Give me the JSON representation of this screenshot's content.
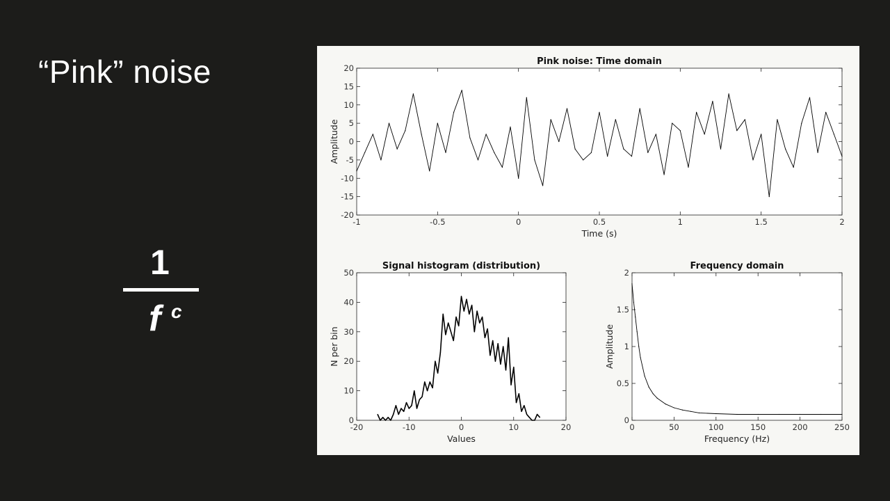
{
  "slide": {
    "title": "“Pink” noise",
    "formula": {
      "numerator": "1",
      "denominator": "f",
      "exponent": "c"
    }
  },
  "colors": {
    "slide_bg": "#1c1c1a",
    "figure_bg": "#f7f7f4",
    "line": "#000000"
  },
  "chart_data": [
    {
      "type": "line",
      "title": "Pink noise: Time domain",
      "xlabel": "Time (s)",
      "ylabel": "Amplitude",
      "xlim": [
        -1,
        2
      ],
      "ylim": [
        -20,
        20
      ],
      "xticks": [
        -1,
        -0.5,
        0,
        0.5,
        1,
        1.5,
        2
      ],
      "yticks": [
        -20,
        -15,
        -10,
        -5,
        0,
        5,
        10,
        15,
        20
      ],
      "grid": false,
      "series": [
        {
          "values_note": "",
          "x": [
            -1.0,
            -0.95,
            -0.9,
            -0.85,
            -0.8,
            -0.75,
            -0.7,
            -0.65,
            -0.6,
            -0.55,
            -0.5,
            -0.45,
            -0.4,
            -0.35,
            -0.3,
            -0.25,
            -0.2,
            -0.15,
            -0.1,
            -0.05,
            0.0,
            0.05,
            0.1,
            0.15,
            0.2,
            0.25,
            0.3,
            0.35,
            0.4,
            0.45,
            0.5,
            0.55,
            0.6,
            0.65,
            0.7,
            0.75,
            0.8,
            0.85,
            0.9,
            0.95,
            1.0,
            1.05,
            1.1,
            1.15,
            1.2,
            1.25,
            1.3,
            1.35,
            1.4,
            1.45,
            1.5,
            1.55,
            1.6,
            1.65,
            1.7,
            1.75,
            1.8,
            1.85,
            1.9,
            1.95,
            2.0
          ],
          "y": [
            -8,
            -3,
            2,
            -5,
            5,
            -2,
            3,
            13,
            2,
            -8,
            5,
            -3,
            8,
            14,
            1,
            -5,
            2,
            -3,
            -7,
            4,
            -10,
            12,
            -5,
            -12,
            6,
            0,
            9,
            -2,
            -5,
            -3,
            8,
            -4,
            6,
            -2,
            -4,
            9,
            -3,
            2,
            -9,
            5,
            3,
            -7,
            8,
            2,
            11,
            -2,
            13,
            3,
            6,
            -5,
            2,
            -15,
            6,
            -2,
            -7,
            5,
            12,
            -3,
            8,
            2,
            -4
          ]
        }
      ]
    },
    {
      "type": "line",
      "title": "Signal histogram (distribution)",
      "xlabel": "Values",
      "ylabel": "N per bin",
      "xlim": [
        -20,
        20
      ],
      "ylim": [
        0,
        50
      ],
      "xticks": [
        -20,
        -10,
        0,
        10,
        20
      ],
      "yticks": [
        0,
        10,
        20,
        30,
        40,
        50
      ],
      "grid": false,
      "series": [
        {
          "x": [
            -16,
            -15.5,
            -15,
            -14.5,
            -14,
            -13.5,
            -13,
            -12.5,
            -12,
            -11.5,
            -11,
            -10.5,
            -10,
            -9.5,
            -9,
            -8.5,
            -8,
            -7.5,
            -7,
            -6.5,
            -6,
            -5.5,
            -5,
            -4.5,
            -4,
            -3.5,
            -3,
            -2.5,
            -2,
            -1.5,
            -1,
            -0.5,
            0,
            0.5,
            1,
            1.5,
            2,
            2.5,
            3,
            3.5,
            4,
            4.5,
            5,
            5.5,
            6,
            6.5,
            7,
            7.5,
            8,
            8.5,
            9,
            9.5,
            10,
            10.5,
            11,
            11.5,
            12,
            12.5,
            13,
            13.5,
            14,
            14.5,
            15
          ],
          "y": [
            2,
            0,
            1,
            0,
            1,
            0,
            2,
            5,
            2,
            4,
            3,
            6,
            4,
            5,
            10,
            4,
            7,
            8,
            13,
            10,
            13,
            11,
            20,
            16,
            23,
            36,
            29,
            33,
            30,
            27,
            35,
            32,
            42,
            37,
            41,
            36,
            39,
            30,
            37,
            33,
            35,
            28,
            31,
            22,
            27,
            20,
            26,
            19,
            25,
            17,
            28,
            12,
            18,
            6,
            9,
            3,
            5,
            2,
            1,
            0,
            0,
            2,
            1
          ]
        }
      ]
    },
    {
      "type": "line",
      "title": "Frequency domain",
      "xlabel": "Frequency (Hz)",
      "ylabel": "Amplitude",
      "xlim": [
        0,
        250
      ],
      "ylim": [
        0,
        2
      ],
      "xticks": [
        0,
        50,
        100,
        150,
        200,
        250
      ],
      "yticks": [
        0,
        0.5,
        1,
        1.5,
        2
      ],
      "grid": false,
      "series": [
        {
          "x": [
            0,
            2,
            4,
            6,
            8,
            10,
            15,
            20,
            25,
            30,
            40,
            50,
            60,
            70,
            80,
            100,
            125,
            150,
            175,
            200,
            225,
            250
          ],
          "y": [
            1.85,
            1.6,
            1.4,
            1.2,
            1.0,
            0.85,
            0.6,
            0.45,
            0.36,
            0.3,
            0.22,
            0.17,
            0.14,
            0.12,
            0.1,
            0.09,
            0.08,
            0.08,
            0.08,
            0.08,
            0.08,
            0.08
          ]
        }
      ]
    }
  ]
}
